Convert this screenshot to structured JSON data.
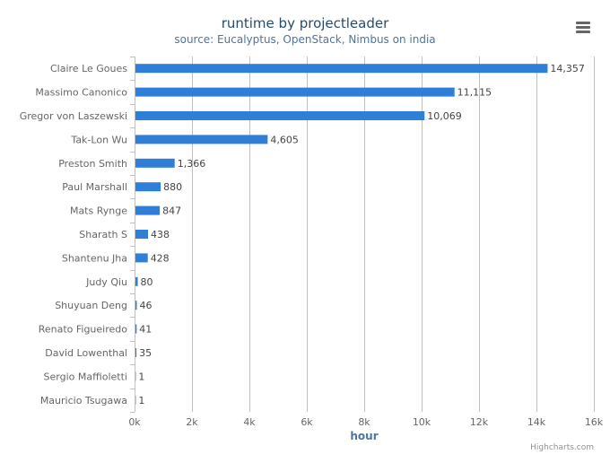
{
  "title": "runtime by projectleader",
  "subtitle": "source: Eucalyptus, OpenStack, Nimbus on india",
  "credits": "Highcharts.com",
  "menu_icon": "hamburger-menu-icon",
  "colors": {
    "bar": "#2f7ed8",
    "grid": "#c0c0c0",
    "axis_title": "#4d759e",
    "label": "#666666",
    "data_label": "#444444"
  },
  "chart_data": {
    "type": "bar",
    "orientation": "horizontal",
    "categories": [
      "Claire Le Goues",
      "Massimo Canonico",
      "Gregor von Laszewski",
      "Tak-Lon Wu",
      "Preston Smith",
      "Paul Marshall",
      "Mats Rynge",
      "Sharath S",
      "Shantenu Jha",
      "Judy Qiu",
      "Shuyuan Deng",
      "Renato Figueiredo",
      "David Lowenthal",
      "Sergio Maffioletti",
      "Mauricio Tsugawa"
    ],
    "values": [
      14357,
      11115,
      10069,
      4605,
      1366,
      880,
      847,
      438,
      428,
      80,
      46,
      41,
      35,
      1,
      1
    ],
    "data_labels": [
      "14,357",
      "11,115",
      "10,069",
      "4,605",
      "1,366",
      "880",
      "847",
      "438",
      "428",
      "80",
      "46",
      "41",
      "35",
      "1",
      "1"
    ],
    "xlabel": "hour",
    "ticks": [
      0,
      2000,
      4000,
      6000,
      8000,
      10000,
      12000,
      14000,
      16000
    ],
    "tick_labels": [
      "0k",
      "2k",
      "4k",
      "6k",
      "8k",
      "10k",
      "12k",
      "14k",
      "16k"
    ],
    "xlim": [
      0,
      16000
    ],
    "grid": true,
    "legend": "none"
  }
}
